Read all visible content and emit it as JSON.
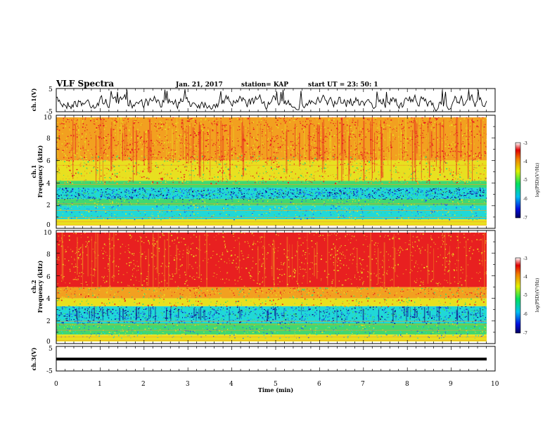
{
  "header": {
    "title": "VLF Spectra",
    "date": "Jan. 21, 2017",
    "station": "station= KAP",
    "start": "start  UT  =   23: 50: 1"
  },
  "colorbar_label": "log(PSD)(V²/Hz)",
  "colors": {
    "high": "#e82020",
    "mid_high": "#f2a020",
    "mid": "#e8e020",
    "mid_low": "#40d870",
    "low": "#20d8d8",
    "lowest": "#2060f0",
    "deep": "#10108a"
  },
  "chart_data": [
    {
      "type": "line",
      "name": "ch1-waveform",
      "ylabel": "ch.1(V)",
      "ylim": [
        -5,
        5
      ],
      "yticks": [
        "5",
        "-5"
      ],
      "xlim": [
        0,
        10
      ]
    },
    {
      "type": "heatmap",
      "name": "ch1-spectrogram",
      "ylabel": "ch.1\nFrequency (kHz)",
      "ylim": [
        0,
        10
      ],
      "yticks": [
        "0",
        "2",
        "4",
        "6",
        "8",
        "10"
      ],
      "xlim": [
        0,
        10
      ],
      "colorbar": {
        "range": [
          -7,
          -3
        ],
        "ticks": [
          "-3",
          "-4",
          "-5",
          "-6",
          "-7"
        ]
      }
    },
    {
      "type": "heatmap",
      "name": "ch2-spectrogram",
      "ylabel": "ch.2\nFrequency (kHz)",
      "ylim": [
        0,
        10
      ],
      "yticks": [
        "0",
        "2",
        "4",
        "6",
        "8",
        "10"
      ],
      "xlim": [
        0,
        10
      ],
      "colorbar": {
        "range": [
          -7,
          -3
        ],
        "ticks": [
          "-3",
          "-4",
          "-5",
          "-6",
          "-7"
        ]
      }
    },
    {
      "type": "line",
      "name": "ch3-waveform",
      "ylabel": "ch.3(V)",
      "ylim": [
        -5,
        5
      ],
      "yticks": [
        "5",
        "-5"
      ],
      "xlim": [
        0,
        10
      ],
      "xlabel": "Time (min)",
      "xticks": [
        "0",
        "1",
        "2",
        "3",
        "4",
        "5",
        "6",
        "7",
        "8",
        "9",
        "10"
      ]
    }
  ]
}
